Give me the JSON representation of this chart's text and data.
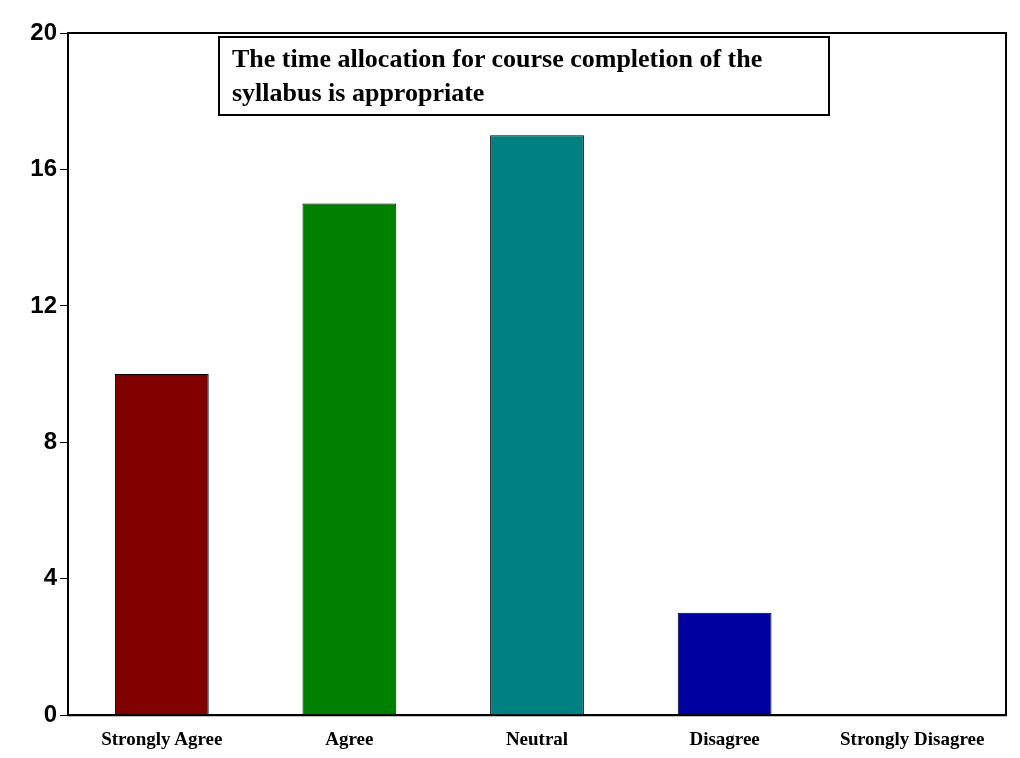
{
  "chart_data": {
    "type": "bar",
    "title": "The time allocation for course completion of the syllabus is appropriate",
    "categories": [
      "Strongly Agree",
      "Agree",
      "Neutral",
      "Disagree",
      "Strongly Disagree"
    ],
    "values": [
      10,
      15,
      17,
      3,
      0
    ],
    "colors": [
      "#800000",
      "#008000",
      "#008080",
      "#0000a0",
      "#000000"
    ],
    "ylim": [
      0,
      20
    ],
    "yticks": [
      0,
      4,
      8,
      12,
      16,
      20
    ],
    "grid": false,
    "legend": false
  }
}
